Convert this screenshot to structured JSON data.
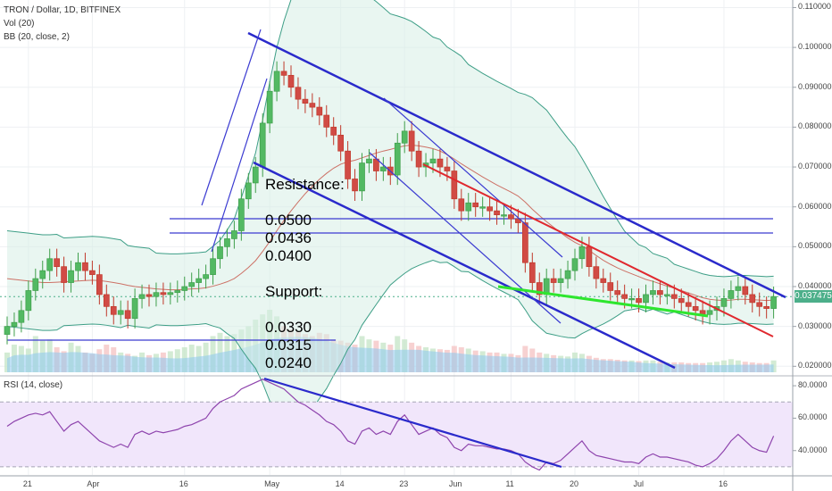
{
  "chart_data": {
    "type": "candlestick",
    "title": "TRON / Dollar, 1D, BITFINEX",
    "indicators": [
      "Vol (20)",
      "BB (20, close, 2)",
      "RSI (14, close)"
    ],
    "last_price": 0.037475,
    "last_price_label": "0.037475",
    "price_axis": {
      "ylim": [
        0.0185,
        0.111
      ],
      "ticks": [
        "0.020000",
        "0.030000",
        "0.040000",
        "0.050000",
        "0.060000",
        "0.070000",
        "0.080000",
        "0.090000",
        "0.100000",
        "0.110000"
      ]
    },
    "rsi_axis": {
      "ylim": [
        25,
        85
      ],
      "ticks": [
        "40.0000",
        "60.0000",
        "80.0000"
      ],
      "bands": [
        30,
        70
      ]
    },
    "x_labels": [
      "21",
      "Apr",
      "16",
      "May",
      "14",
      "23",
      "Jun",
      "11",
      "20",
      "Jul",
      "16"
    ],
    "annotations": {
      "resistance_label": "Resistance:",
      "resistance": [
        "0.0500",
        "0.0436",
        "0.0400"
      ],
      "support_label": "Support:",
      "support": [
        "0.0330",
        "0.0315",
        "0.0240"
      ]
    },
    "closes": [
      0.03,
      0.031,
      0.034,
      0.039,
      0.042,
      0.044,
      0.047,
      0.045,
      0.041,
      0.044,
      0.046,
      0.044,
      0.043,
      0.038,
      0.035,
      0.033,
      0.034,
      0.032,
      0.037,
      0.038,
      0.0375,
      0.0385,
      0.038,
      0.0385,
      0.039,
      0.04,
      0.041,
      0.042,
      0.043,
      0.047,
      0.05,
      0.052,
      0.054,
      0.062,
      0.066,
      0.07,
      0.081,
      0.089,
      0.094,
      0.093,
      0.09,
      0.087,
      0.086,
      0.085,
      0.083,
      0.08,
      0.078,
      0.074,
      0.067,
      0.064,
      0.071,
      0.072,
      0.069,
      0.07,
      0.068,
      0.076,
      0.079,
      0.074,
      0.07,
      0.071,
      0.072,
      0.07,
      0.069,
      0.062,
      0.059,
      0.061,
      0.06,
      0.06,
      0.059,
      0.058,
      0.058,
      0.057,
      0.056,
      0.046,
      0.041,
      0.038,
      0.042,
      0.041,
      0.042,
      0.044,
      0.047,
      0.05,
      0.045,
      0.042,
      0.041,
      0.039,
      0.038,
      0.037,
      0.037,
      0.036,
      0.038,
      0.039,
      0.038,
      0.038,
      0.037,
      0.036,
      0.035,
      0.034,
      0.033,
      0.034,
      0.035,
      0.037,
      0.039,
      0.04,
      0.038,
      0.036,
      0.035,
      0.0345,
      0.0375
    ],
    "volumes": [
      30,
      42,
      40,
      36,
      55,
      48,
      50,
      38,
      32,
      45,
      40,
      30,
      28,
      35,
      42,
      38,
      30,
      28,
      25,
      30,
      26,
      28,
      30,
      32,
      35,
      38,
      42,
      40,
      45,
      55,
      60,
      55,
      58,
      65,
      70,
      80,
      88,
      95,
      85,
      70,
      65,
      62,
      58,
      55,
      60,
      58,
      50,
      48,
      45,
      42,
      55,
      50,
      48,
      45,
      42,
      55,
      50,
      45,
      40,
      38,
      36,
      35,
      34,
      40,
      38,
      36,
      33,
      32,
      30,
      30,
      28,
      28,
      26,
      40,
      36,
      30,
      28,
      26,
      25,
      24,
      30,
      28,
      25,
      22,
      20,
      20,
      19,
      18,
      18,
      17,
      18,
      18,
      16,
      15,
      15,
      15,
      14,
      14,
      14,
      15,
      16,
      18,
      20,
      18,
      16,
      15,
      14,
      14,
      18
    ],
    "bb_mid": [
      0.042,
      0.0418,
      0.0416,
      0.0414,
      0.0412,
      0.041,
      0.041,
      0.0411,
      0.0412,
      0.0413,
      0.0414,
      0.0415,
      0.0416,
      0.0415,
      0.0413,
      0.041,
      0.0407,
      0.0403,
      0.04,
      0.0398,
      0.0396,
      0.0394,
      0.0393,
      0.0392,
      0.0392,
      0.0393,
      0.0394,
      0.0395,
      0.0397,
      0.0401,
      0.0406,
      0.0412,
      0.042,
      0.0433,
      0.0448,
      0.0465,
      0.0488,
      0.0513,
      0.054,
      0.0566,
      0.059,
      0.0612,
      0.0633,
      0.0652,
      0.0669,
      0.0684,
      0.0697,
      0.0707,
      0.0713,
      0.0717,
      0.0723,
      0.0729,
      0.0735,
      0.074,
      0.0744,
      0.0749,
      0.0753,
      0.0755,
      0.0753,
      0.075,
      0.0746,
      0.074,
      0.0731,
      0.072,
      0.0708,
      0.0697,
      0.0686,
      0.0675,
      0.0665,
      0.0655,
      0.0646,
      0.0637,
      0.0627,
      0.0612,
      0.0594,
      0.0578,
      0.0563,
      0.0549,
      0.0535,
      0.0522,
      0.0511,
      0.0502,
      0.0491,
      0.0478,
      0.0466,
      0.0456,
      0.0447,
      0.0439,
      0.0432,
      0.0425,
      0.0418,
      0.0413,
      0.0407,
      0.0401,
      0.0396,
      0.039,
      0.0384,
      0.0378,
      0.0372,
      0.0368,
      0.0366,
      0.0365,
      0.0366,
      0.0368,
      0.0368,
      0.0367,
      0.0366,
      0.0365,
      0.0366
    ],
    "bb_width": [
      0.012,
      0.012,
      0.012,
      0.012,
      0.012,
      0.012,
      0.012,
      0.012,
      0.011,
      0.011,
      0.011,
      0.011,
      0.011,
      0.011,
      0.011,
      0.011,
      0.011,
      0.01,
      0.01,
      0.01,
      0.01,
      0.009,
      0.009,
      0.009,
      0.009,
      0.009,
      0.009,
      0.009,
      0.009,
      0.01,
      0.011,
      0.013,
      0.015,
      0.019,
      0.023,
      0.027,
      0.033,
      0.04,
      0.046,
      0.05,
      0.053,
      0.055,
      0.056,
      0.056,
      0.055,
      0.054,
      0.052,
      0.05,
      0.047,
      0.045,
      0.042,
      0.04,
      0.038,
      0.036,
      0.034,
      0.033,
      0.032,
      0.031,
      0.03,
      0.029,
      0.028,
      0.028,
      0.027,
      0.027,
      0.027,
      0.026,
      0.026,
      0.026,
      0.026,
      0.026,
      0.026,
      0.026,
      0.026,
      0.027,
      0.028,
      0.028,
      0.028,
      0.027,
      0.026,
      0.025,
      0.024,
      0.022,
      0.02,
      0.018,
      0.016,
      0.014,
      0.012,
      0.01,
      0.009,
      0.008,
      0.008,
      0.007,
      0.007,
      0.007,
      0.006,
      0.006,
      0.006,
      0.006,
      0.006,
      0.006,
      0.006,
      0.006,
      0.006,
      0.006,
      0.006,
      0.006,
      0.006,
      0.006,
      0.006
    ],
    "rsi": [
      55,
      58,
      60,
      62,
      63,
      62,
      64,
      58,
      52,
      56,
      58,
      54,
      50,
      46,
      44,
      42,
      44,
      42,
      50,
      52,
      50,
      52,
      51,
      52,
      53,
      55,
      56,
      58,
      60,
      66,
      70,
      72,
      74,
      78,
      80,
      82,
      84,
      82,
      80,
      78,
      74,
      70,
      68,
      65,
      62,
      58,
      56,
      52,
      46,
      44,
      52,
      54,
      50,
      52,
      50,
      58,
      62,
      56,
      50,
      52,
      54,
      50,
      48,
      42,
      40,
      44,
      43,
      43,
      42,
      41,
      41,
      40,
      38,
      33,
      30,
      28,
      33,
      32,
      34,
      38,
      42,
      46,
      40,
      37,
      36,
      35,
      34,
      33,
      33,
      32,
      36,
      38,
      36,
      36,
      35,
      34,
      33,
      31,
      30,
      32,
      35,
      40,
      46,
      50,
      46,
      42,
      40,
      39,
      49
    ]
  }
}
